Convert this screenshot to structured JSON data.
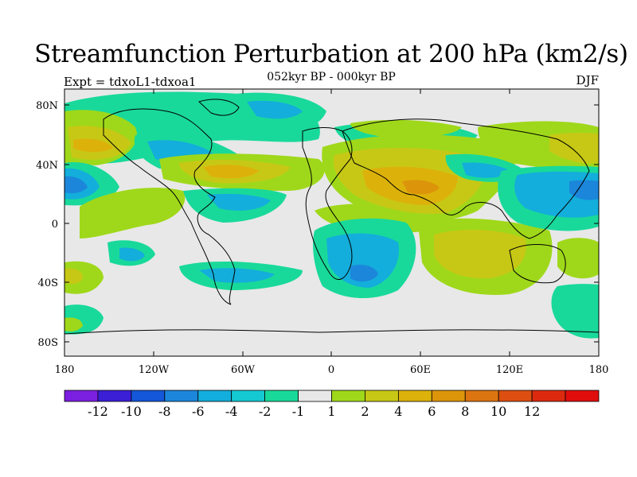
{
  "title": "Streamfunction Perturbation at 200 hPa (km2/s)",
  "subtitle": "052kyr BP - 000kyr BP",
  "experiment": "Expt = tdxoL1-tdxoa1",
  "season": "DJF",
  "lat_labels": [
    "80N",
    "40N",
    "0",
    "40S",
    "80S"
  ],
  "lon_labels": [
    "180",
    "120W",
    "60W",
    "0",
    "60E",
    "120E",
    "180"
  ],
  "colorbar": {
    "colors": [
      "#7b1fe0",
      "#3a1fd6",
      "#1457d8",
      "#1c86db",
      "#13aedb",
      "#15c9d2",
      "#19d99a",
      "#e8e8e8",
      "#9fd81a",
      "#c7c815",
      "#dcb20a",
      "#dc950a",
      "#dc7410",
      "#dc4f10",
      "#dc2a0f",
      "#e00d0d"
    ],
    "labels": [
      "-12",
      "-10",
      "-8",
      "-6",
      "-4",
      "-2",
      "-1",
      "1",
      "2",
      "4",
      "6",
      "8",
      "10",
      "12"
    ]
  }
}
